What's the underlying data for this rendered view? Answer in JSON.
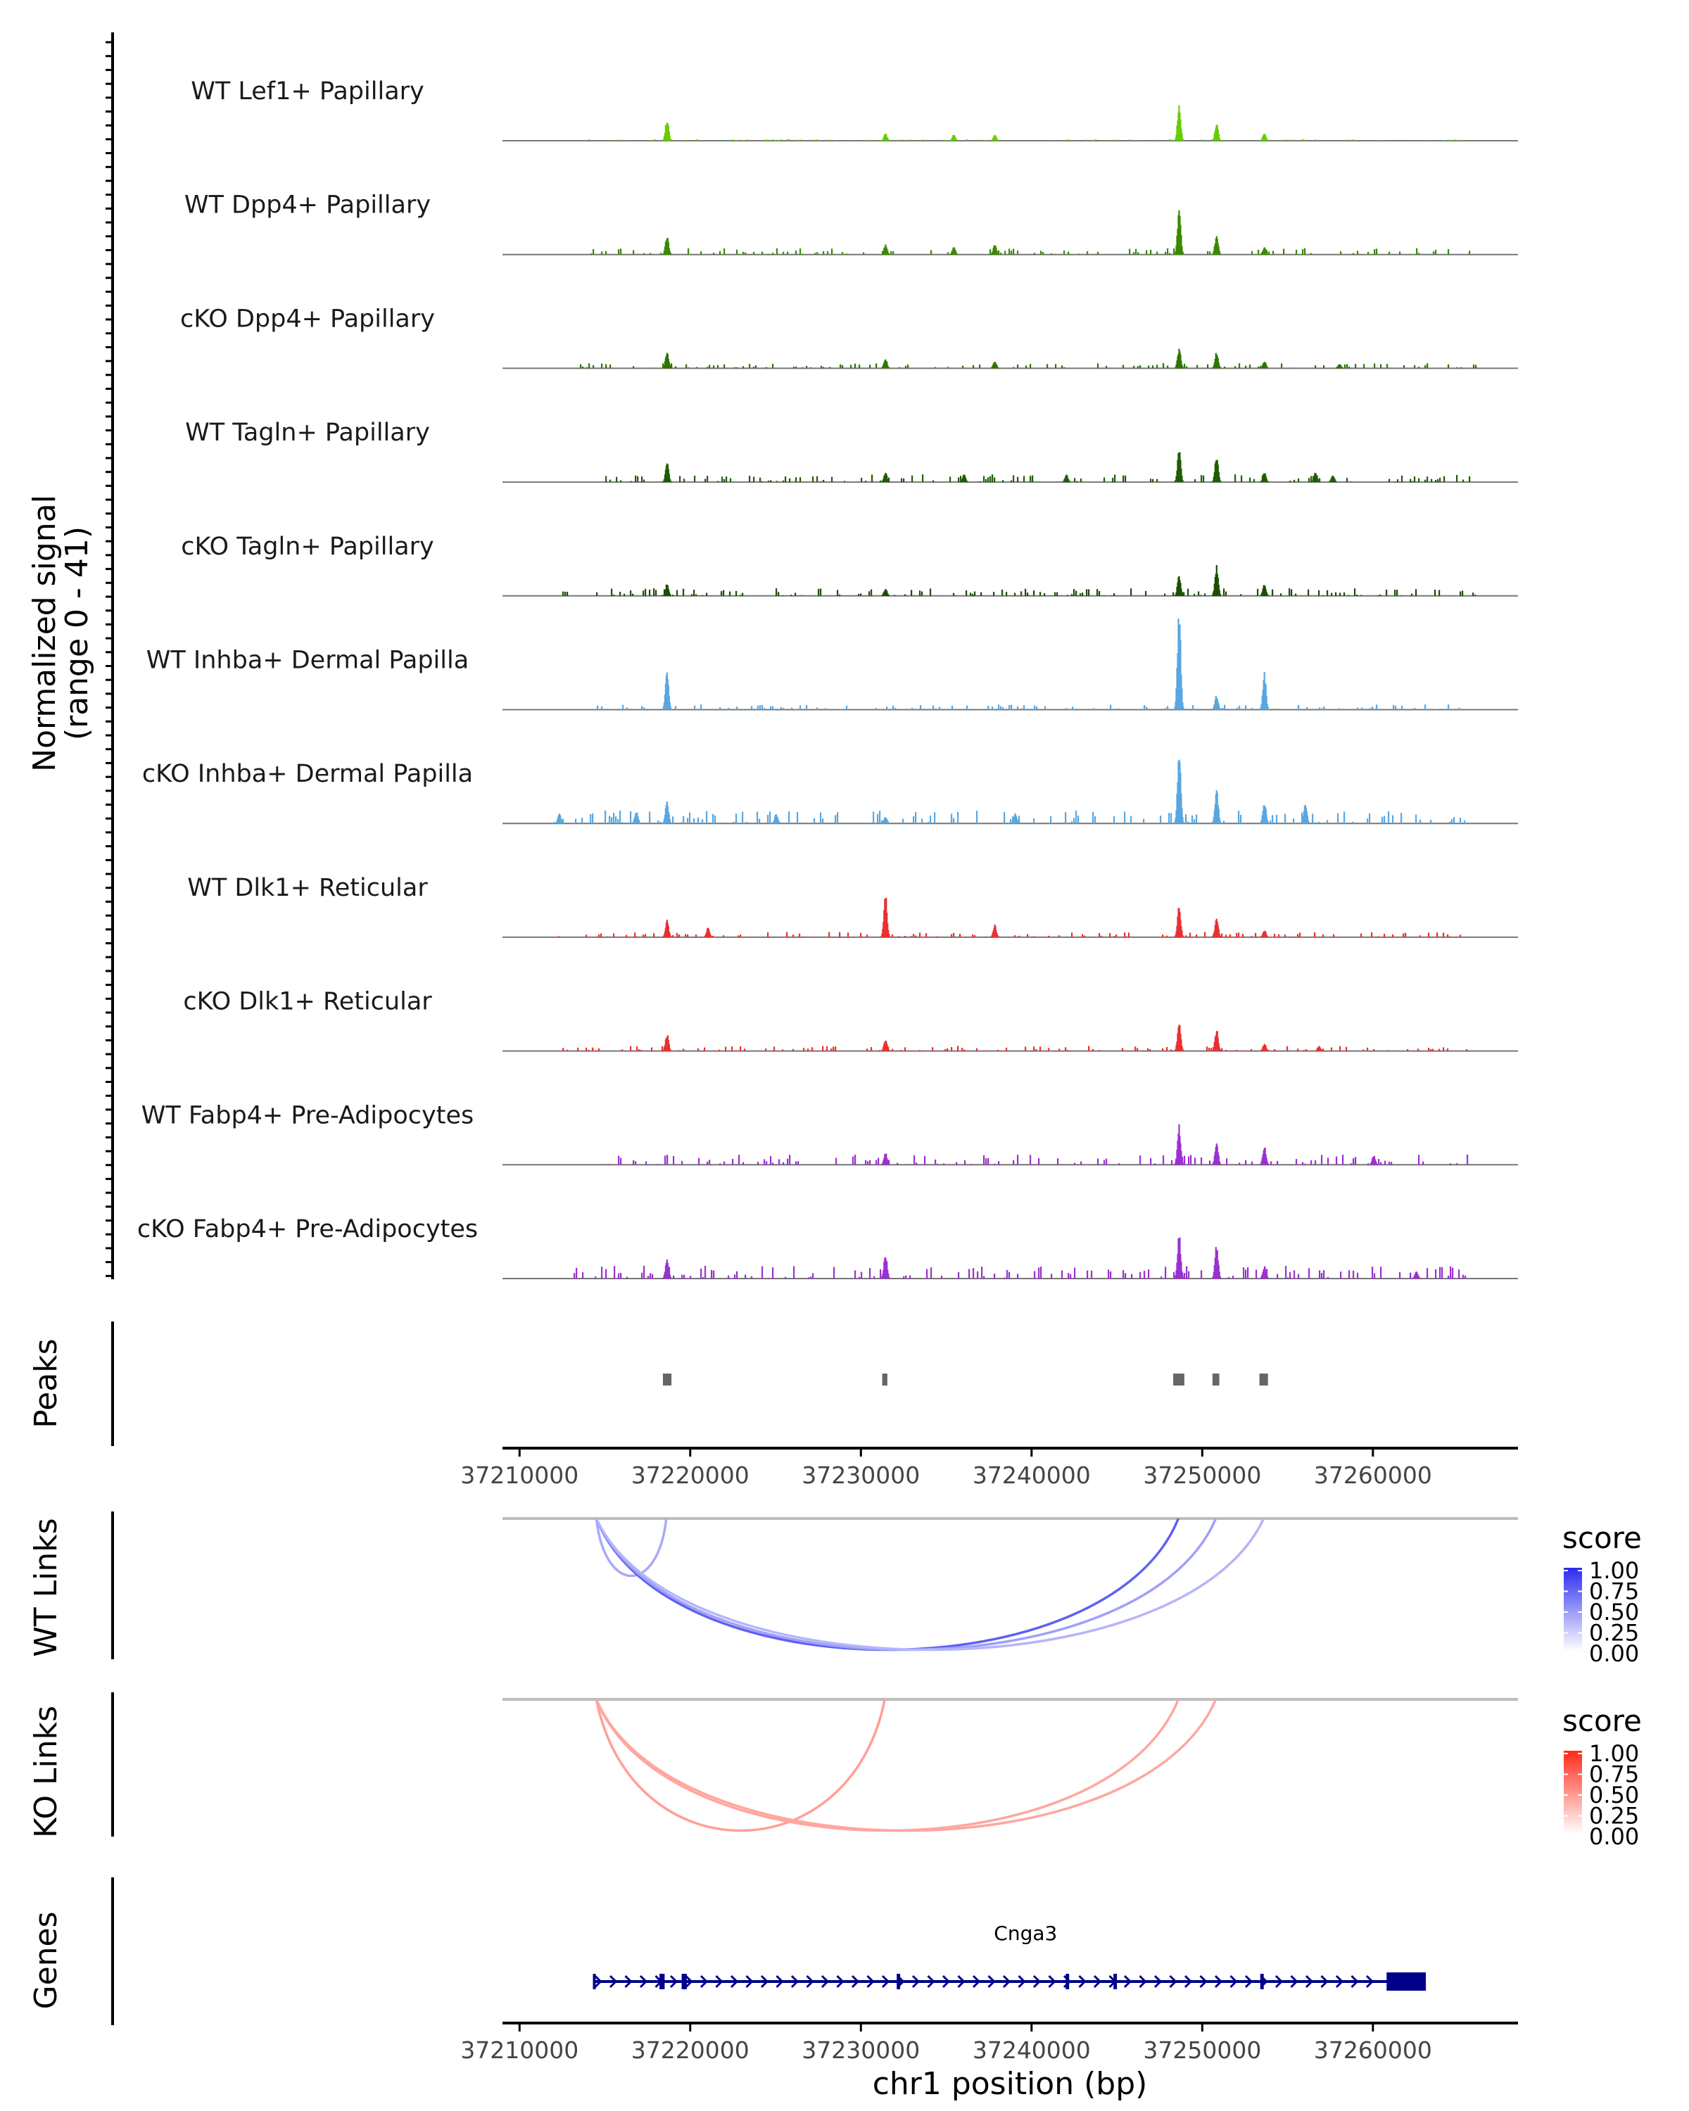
{
  "chart_data": {
    "type": "area",
    "title": "",
    "region": {
      "chromosome": "chr1",
      "xlim": [
        37209000,
        37268500
      ]
    },
    "ylabel_signal": [
      "Normalized signal",
      "(range 0 - 41)"
    ],
    "signal_range": [
      0,
      41
    ],
    "xlabel": "chr1 position (bp)",
    "x_ticks": [
      37210000,
      37220000,
      37230000,
      37240000,
      37250000,
      37260000
    ],
    "x_tick_labels": [
      "37210000",
      "37220000",
      "37230000",
      "37240000",
      "37250000",
      "37260000"
    ],
    "tracks": [
      {
        "name": "WT Lef1+ Papillary",
        "color": "#66cc00",
        "peaks": [
          [
            37218600,
            9
          ],
          [
            37231400,
            3
          ],
          [
            37235400,
            2.5
          ],
          [
            37237800,
            2.5
          ],
          [
            37248600,
            15
          ],
          [
            37250800,
            7
          ],
          [
            37253600,
            3
          ]
        ],
        "noise": [
          37214000,
          37266000,
          0.6
        ]
      },
      {
        "name": "WT Dpp4+ Papillary",
        "color": "#3a8a00",
        "peaks": [
          [
            37218600,
            8
          ],
          [
            37231400,
            4
          ],
          [
            37235400,
            3
          ],
          [
            37237800,
            4
          ],
          [
            37248600,
            20
          ],
          [
            37250800,
            8
          ],
          [
            37253600,
            3
          ]
        ],
        "noise": [
          37214000,
          37266000,
          2.5
        ]
      },
      {
        "name": "cKO Dpp4+ Papillary",
        "color": "#2e7500",
        "peaks": [
          [
            37218600,
            7
          ],
          [
            37231400,
            4
          ],
          [
            37237800,
            3
          ],
          [
            37248600,
            8
          ],
          [
            37250800,
            7
          ],
          [
            37253600,
            3
          ],
          [
            37258000,
            2
          ]
        ],
        "noise": [
          37213000,
          37266000,
          2
        ]
      },
      {
        "name": "WT Tagln+ Papillary",
        "color": "#1f5e00",
        "peaks": [
          [
            37218600,
            8
          ],
          [
            37231400,
            4
          ],
          [
            37236000,
            3
          ],
          [
            37242000,
            3
          ],
          [
            37248600,
            13
          ],
          [
            37250800,
            11
          ],
          [
            37253600,
            4
          ],
          [
            37256600,
            4
          ],
          [
            37257600,
            3
          ]
        ],
        "noise": [
          37215000,
          37266000,
          3
        ]
      },
      {
        "name": "cKO Tagln+ Papillary",
        "color": "#1a4e00",
        "peaks": [
          [
            37218600,
            5
          ],
          [
            37231400,
            3
          ],
          [
            37248600,
            9
          ],
          [
            37250800,
            12
          ],
          [
            37253600,
            5
          ]
        ],
        "noise": [
          37212000,
          37266000,
          3
        ]
      },
      {
        "name": "WT Inhba+ Dermal Papilla",
        "color": "#5aa7e0",
        "peaks": [
          [
            37218600,
            16
          ],
          [
            37248600,
            41
          ],
          [
            37250800,
            6
          ],
          [
            37253600,
            15
          ]
        ],
        "noise": [
          37214000,
          37265000,
          2
        ]
      },
      {
        "name": "cKO Inhba+ Dermal Papilla",
        "color": "#5aa7e0",
        "peaks": [
          [
            37212300,
            4
          ],
          [
            37216800,
            5
          ],
          [
            37218600,
            9
          ],
          [
            37225000,
            4
          ],
          [
            37231400,
            3
          ],
          [
            37239000,
            4
          ],
          [
            37248600,
            32
          ],
          [
            37250800,
            14
          ],
          [
            37253600,
            9
          ],
          [
            37256000,
            8
          ]
        ],
        "noise": [
          37212000,
          37265500,
          5
        ]
      },
      {
        "name": "WT Dlk1+ Reticular",
        "color": "#e83030",
        "peaks": [
          [
            37218600,
            7
          ],
          [
            37221000,
            4
          ],
          [
            37231400,
            17
          ],
          [
            37237800,
            5
          ],
          [
            37248600,
            13
          ],
          [
            37250800,
            8
          ],
          [
            37253600,
            3
          ]
        ],
        "noise": [
          37212000,
          37265500,
          2
        ]
      },
      {
        "name": "cKO Dlk1+ Reticular",
        "color": "#e83030",
        "peaks": [
          [
            37218600,
            7
          ],
          [
            37231400,
            5
          ],
          [
            37248600,
            12
          ],
          [
            37250800,
            9
          ],
          [
            37253600,
            3
          ],
          [
            37256800,
            2
          ]
        ],
        "noise": [
          37212000,
          37265500,
          2
        ]
      },
      {
        "name": "WT Fabp4+ Pre-Adipocytes",
        "color": "#9b30d0",
        "peaks": [
          [
            37231400,
            5
          ],
          [
            37248600,
            16
          ],
          [
            37250800,
            9
          ],
          [
            37253600,
            8
          ],
          [
            37260000,
            4
          ]
        ],
        "noise": [
          37214500,
          37265500,
          4
        ]
      },
      {
        "name": "cKO Fabp4+ Pre-Adipocytes",
        "color": "#9b30d0",
        "peaks": [
          [
            37218600,
            8
          ],
          [
            37231400,
            10
          ],
          [
            37248600,
            18
          ],
          [
            37250800,
            14
          ],
          [
            37253600,
            5
          ],
          [
            37262500,
            3
          ]
        ],
        "noise": [
          37213000,
          37265500,
          5
        ]
      }
    ],
    "peaks_track": {
      "label": "Peaks",
      "regions": [
        [
          37218400,
          37218900
        ],
        [
          37231250,
          37231550
        ],
        [
          37248300,
          37248950
        ],
        [
          37250600,
          37251000
        ],
        [
          37253350,
          37253850
        ]
      ]
    },
    "wt_links": {
      "label": "WT Links",
      "legend_title": "score",
      "legend_ticks": [
        "1.00",
        "0.75",
        "0.50",
        "0.25",
        "0.00"
      ],
      "color_high": "#2b2bf0",
      "links": [
        {
          "start": 37214500,
          "end": 37218600,
          "score": 0.4
        },
        {
          "start": 37214500,
          "end": 37248600,
          "score": 0.75
        },
        {
          "start": 37214500,
          "end": 37250800,
          "score": 0.45
        },
        {
          "start": 37214500,
          "end": 37253600,
          "score": 0.35
        }
      ]
    },
    "ko_links": {
      "label": "KO Links",
      "legend_title": "score",
      "legend_ticks": [
        "1.00",
        "0.75",
        "0.50",
        "0.25",
        "0.00"
      ],
      "color_high": "#ff2a1a",
      "links": [
        {
          "start": 37214500,
          "end": 37231400,
          "score": 0.45
        },
        {
          "start": 37214500,
          "end": 37248600,
          "score": 0.42
        },
        {
          "start": 37214500,
          "end": 37250800,
          "score": 0.42
        }
      ]
    },
    "genes_track": {
      "label": "Genes",
      "color": "#00008b",
      "genes": [
        {
          "name": "Cnga3",
          "start": 37214300,
          "end": 37263100,
          "strand": "+",
          "exons": [
            [
              37214300,
              37214450
            ],
            [
              37218200,
              37218500
            ],
            [
              37219500,
              37219800
            ],
            [
              37232100,
              37232300
            ],
            [
              37242000,
              37242200
            ],
            [
              37244800,
              37245000
            ],
            [
              37253400,
              37253600
            ],
            [
              37260800,
              37263100
            ]
          ]
        }
      ]
    }
  }
}
